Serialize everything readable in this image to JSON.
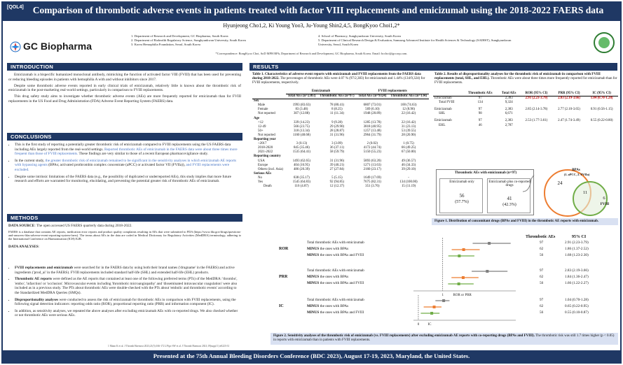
{
  "header": {
    "tag": "[QOL4]",
    "title": "Comparison of thrombotic adverse events in patients treated with factor VIII replacements and emicizumab using the 2018-2022 FAERS data",
    "authors": "Hyunjeong Cho1,2, Ki Young Yoo3, Ju-Young Shin2,4,5, BongKyoo Choi1,2*",
    "logo": "GC Biopharma",
    "affiliations_left": [
      "1. Department of Research and Development, GC Biopharma, South Korea",
      "2. Department of Biohealth Regulatory Science, Sungkyunkwan University, South Korea",
      "3. Korea Hemophilia Foundation, Seoul, South Korea"
    ],
    "affiliations_right": [
      "4. School of Pharmacy, Sungkyunkwan University, South Korea",
      "5. Department of Clinical Research Design & Evaluation, Samsung Advanced Institute for Health Sciences & Technology (SAIHST), Sungkyunkwan University, Seoul, South Korea"
    ],
    "correspondence": "*Correspondence: BongKyoo Choi, SoD MPH RPh, Department of Research and Development, GC Biopharma, South Korea. Email: bcchoi@gccorp.com."
  },
  "introduction": {
    "heading": "INTRODUCTION",
    "paragraphs": [
      "Emicizumab is a bispecific humanized monoclonal antibody, mimicking the function of activated factor VIII (FVIII) that has been used for preventing or reducing bleeding episodes in patients with hemophilia A with and without inhibitors since 2017.",
      "Despite some thrombotic adverse events reported in early clinical trials of emicizumab, relatively little is known about the thrombotic risk of emicizumab in the post-marketing real-world settings, particularly in comparison to FVIII replacements.",
      "This drug safety study aims to investigate whether thrombotic adverse events (AEs) are more frequently reported for emicizumab than for FVIII replacements in the US Food and Drug Administration (FDA) Adverse Event Reporting System (FAERS) data."
    ]
  },
  "conclusions": {
    "heading": "CONCLUSIONS",
    "b1_pre": "This is the first study of reporting a potentially greater thrombotic risk of emicizumab compared to FVIII replacements using the US FAERS data including AEs largely reported from the real-world settings. ",
    "b1_hl": "Reported thrombotic AEs of emicizumab in the FAERS data were about three times more frequent than those of FVIII replacements.",
    "b1_post": " These findings are very similar to those of a recent European pharmacovigilance study.",
    "b2_pre": "In the current study, ",
    "b2_hl": "the greater thrombotic risk of emicizumab remained to be significant in the sensitivity analyses in which emicizumab AE reports with bypassing agents",
    "b2_mid": " (BPAs; activated prothrombin complex concentrate (aPCC) or activated factor VII (FVIIa)), ",
    "b2_hl2": "and FVIII replacements were excluded.",
    "b3": "Despite some intrinsic limitations of the FAERS data (e.g., the possibility of duplicated or underreported AEs), this study implies that more future research and efforts are warranted for monitoring, elucidating, and preventing the potential greater risk of thrombotic AEs of emicizumab."
  },
  "methods": {
    "heading": "METHODS",
    "ds_label": "DATA SOURCE",
    "ds_text": ": The open accessed US FAERS quarterly data during 2018-2022.",
    "ds_detail": "FAERS is a database that contains AE reports, medication error reports and product quality complaints resulting in AEs that were submitted to FDA (https://www.fda.gov/drugs/questions-and-answers-fdas-adverse-event-reporting-system-faers). The terms about AEs in the data are coded in Medical Dictionary for Regulatory Activities (MedDRA) terminology, adhering to the International Conference on Harmonization (ICH) E2B.",
    "da_label": "DATA ANALYSES",
    "da_colon": ":",
    "m1_bold": "FVIII replacements and emicizumab",
    "m1": " were searched for in the FAERS data by using both their brand names ('drugname' in the FAERS) and active ingredients ('prod_ai' in the FAERS). FVIII replacements included standard half-life (SHL) and extended half-life (EHL) products.",
    "m2_bold": "Thrombotic AE reports",
    "m2": " were defined as the AE reports that contained at least one of the following preferred terms (PTs) of the MedDRA: 'thrombo', 'embo', 'infarction' or 'occlusion'. Microvascular events including 'thrombotic microangiopathy' and 'disseminated intravascular coagulation' were also included as in a previous study. The PTs about thrombotic AEs were double-checked with the PTs about 'embolic and thrombotic events' according to the Standardized MedDRA Queries (SMQs).",
    "m3_bold": "Disproportionality analyses",
    "m3": " were conducted to assess the risk of emicizumab for thrombotic AEs in comparison with FVIII replacements, using the following signal detection indicators: reporting odds ratio (ROR), proportional reporting ratio (PRR) and information component (IC).",
    "m4": "In addition, as sensitivity analyses, we repeated the above analyses after excluding emicizumab AEs with co-reported drugs. We also checked whether or not thrombotic AEs were serious AEs.",
    "refs": "1 Mann K et al. J Thromb Haemost 2023;21(5):166-172   2 Pipe SW et al. J Thromb Haemost 2021;19(suppl 1):e0223-31"
  },
  "results": {
    "heading": "RESULTS",
    "table1": {
      "caption_bold": "Table 1. Characteristics of adverse event reports with emicizumab and FVIII replacements from the FAERS data during 2018-2022.",
      "caption": " The percentages of thrombotic AEs were 4.07 % (97/2,383) for emicizumab and 1.44% (134/9,324) for FVIII replacements, respectively.",
      "group1": "Emicizumab",
      "group2": "FVIII replacements",
      "headers": [
        "",
        "Total AEs (n=2383)",
        "Thrombotic AEs (n=97)",
        "Total AEs (n=9324)",
        "Thrombotic AEs (n=134)"
      ],
      "rows": [
        {
          "label": "Sex",
          "kind": "grp",
          "cells": [
            "",
            "",
            "",
            ""
          ]
        },
        {
          "label": "Male",
          "kind": "sub",
          "cells": [
            "1993 (83.63)",
            "78 (80.41)",
            "6807 (73.01)",
            "100 (74.63)"
          ]
        },
        {
          "label": "Female",
          "kind": "sub",
          "cells": [
            "83 (3.48)",
            "8 (8.25)",
            "569 (6.10)",
            "12 (8.96)"
          ]
        },
        {
          "label": "Not reported",
          "kind": "sub",
          "cells": [
            "307 (12.88)",
            "11 (11.34)",
            "1948 (20.89)",
            "22 (16.42)"
          ]
        },
        {
          "label": "Age",
          "kind": "grp",
          "cells": [
            "",
            "",
            "",
            ""
          ]
        },
        {
          "label": "<12",
          "kind": "sub",
          "cells": [
            "339 (14.23)",
            "9 (9.28)",
            "1285 (13.78)",
            "22 (16.42)"
          ]
        },
        {
          "label": "12-49",
          "kind": "sub",
          "cells": [
            "566 (23.75)",
            "29 (29.90)",
            "3818 (40.95)",
            "31 (23.13)"
          ]
        },
        {
          "label": "50+",
          "kind": "sub",
          "cells": [
            "318 (13.34)",
            "28 (28.87)",
            "1257 (13.48)",
            "53 (39.55)"
          ]
        },
        {
          "label": "Not reported",
          "kind": "sub",
          "cells": [
            "1160 (48.68)",
            "31 (31.96)",
            "2964 (31.79)",
            "28 (20.90)"
          ]
        },
        {
          "label": "Reporting year",
          "kind": "grp",
          "cells": [
            "",
            "",
            "",
            ""
          ]
        },
        {
          "label": "~2017",
          "kind": "sub",
          "cells": [
            "3 (0.13)",
            "3 (3.09)",
            "2 (0.02)",
            "1 (0.75)"
          ]
        },
        {
          "label": "2018-2020",
          "kind": "sub",
          "cells": [
            "845 (35.46)",
            "36 (37.11)",
            "4172 (44.74)",
            "66 (49.25)"
          ]
        },
        {
          "label": "2021-2022",
          "kind": "sub",
          "cells": [
            "1535 (64.41)",
            "58 (59.79)",
            "5150 (55.23)",
            "67 (50.00)"
          ]
        },
        {
          "label": "Reporting country",
          "kind": "grp",
          "cells": [
            "",
            "",
            "",
            ""
          ]
        },
        {
          "label": "USA",
          "kind": "sub",
          "cells": [
            "1493 (62.65)",
            "31 (31.96)",
            "5893 (63.20)",
            "49 (36.57)"
          ]
        },
        {
          "label": "Europe",
          "kind": "sub",
          "cells": [
            "404 (16.95)",
            "39 (40.21)",
            "1271 (13.63)",
            "46 (34.33)"
          ]
        },
        {
          "label": "Others (incl. Asia)",
          "kind": "sub",
          "cells": [
            "486 (20.39)",
            "27 (27.84)",
            "2160 (23.17)",
            "39 (29.10)"
          ]
        },
        {
          "label": "Serious AEs",
          "kind": "grp",
          "cells": [
            "",
            "",
            "",
            ""
          ]
        },
        {
          "label": "No",
          "kind": "sub",
          "cells": [
            "838 (35.17)",
            "5 (5.15)",
            "1649 (17.69)",
            "-"
          ]
        },
        {
          "label": "Yes",
          "kind": "sub",
          "cells": [
            "1545 (64.83)",
            "92 (94.85)",
            "7675 (82.31)",
            "134 (100.00)"
          ]
        },
        {
          "label": "Death",
          "kind": "sub2",
          "cells": [
            "116 (4.87)",
            "12 (12.37)",
            "351 (3.76)",
            "15 (11.19)"
          ]
        }
      ]
    },
    "table2": {
      "caption_bold": "Table 2. Results of disproportionality analyses for the thrombotic risk of emicizumab in comparison with FVIII replacements (total, SHL, and EHL).",
      "caption": " Thrombotic AEs were about three times more frequently reported for emicizumab than for FVIII replacements.",
      "headers": [
        "",
        "Thrombotic AEs",
        "Total AEs",
        "ROR (95% CI)",
        "PRR (95% CI)",
        "IC (95% CI)"
      ],
      "rows": [
        [
          "Emicizumab",
          "97",
          "2,383",
          "2.91 (2.23-3.79)",
          "2.83 (2.19-3.66)",
          "1.04 (0.70-1.28)"
        ],
        [
          "Total FVIII",
          "134",
          "9,324",
          "",
          "",
          ""
        ],
        [
          "Emicizumab",
          "97",
          "2,383",
          "2.85 (2.14-3.78)",
          "2.77 (2.10-3.65)",
          "0.91 (0.56-1.15)"
        ],
        [
          "SHL",
          "98",
          "6,671",
          "",
          "",
          ""
        ],
        [
          "Emicizumab",
          "97",
          "2,383",
          "2.53 (1.77-3.61)",
          "2.47 (1.74-3.49)",
          "0.55 (0.22-0.80)"
        ],
        [
          "EHL",
          "46",
          "2,787",
          "",
          "",
          ""
        ]
      ]
    },
    "venn": {
      "box_title": "Thrombotic AEs with emicizumab (n=97)",
      "left_box_label": "Emicizumab only",
      "left_box_value": "56",
      "left_box_pct": "(57.7%)",
      "right_box_label": "Emicizumab plus co-reported drugs",
      "right_box_value": "41",
      "right_box_pct": "(42.3%)",
      "bpa_label": "BPAs",
      "bpa_sub": "(1. aPCC, 2. FVIIa)",
      "bpa_only": "24",
      "overlap": "11",
      "fviii_only": "6",
      "fviii_label": "FVIII"
    },
    "figure1_caption_bold": "Figure 1. Distribution of concomitant drugs (BPAs and FVIII) in the thrombotic AE reports with emicizumab.",
    "forest": {
      "col_events": "Thrombotic AEs",
      "col_ci": "95% CI",
      "x_label_ror": "ROR or PRR",
      "x_label_ic": "IC",
      "tick_1": "1",
      "tick_0": "0",
      "groups": [
        {
          "name": "ROR",
          "rows": [
            {
              "label": "Total thrombotic AEs with emicizumab",
              "bold": "",
              "tail": "",
              "n": "97",
              "ci": "2.91 (2.23-3.79)",
              "est": 2.91,
              "lo": 2.23,
              "hi": 3.79,
              "color": "#7f7f7f"
            },
            {
              "label": "",
              "bold": "MINUS",
              "tail": " the ones with BPAs",
              "n": "62",
              "ci": "1.86 (1.37-2.52)",
              "est": 1.86,
              "lo": 1.37,
              "hi": 2.52,
              "color": "#ed7d31"
            },
            {
              "label": "",
              "bold": "MINUS",
              "tail": " the ones with BPAs and FVIII",
              "n": "56",
              "ci": "1.68 (1.23-2.30)",
              "est": 1.68,
              "lo": 1.23,
              "hi": 2.3,
              "color": "#70ad47"
            }
          ]
        },
        {
          "name": "PRR",
          "rows": [
            {
              "label": "Total thrombotic AEs with emicizumab",
              "bold": "",
              "tail": "",
              "n": "97",
              "ci": "2.83 (2.19-3.66)",
              "est": 2.83,
              "lo": 2.19,
              "hi": 3.66,
              "color": "#7f7f7f"
            },
            {
              "label": "",
              "bold": "MINUS",
              "tail": " the ones with BPAs",
              "n": "62",
              "ci": "1.84 (1.36-2.47)",
              "est": 1.84,
              "lo": 1.36,
              "hi": 2.47,
              "color": "#ed7d31"
            },
            {
              "label": "",
              "bold": "MINUS",
              "tail": " the ones with BPAs and FVIII",
              "n": "56",
              "ci": "1.66 (1.22-2.27)",
              "est": 1.66,
              "lo": 1.22,
              "hi": 2.27,
              "color": "#70ad47"
            }
          ]
        },
        {
          "name": "IC",
          "rows": [
            {
              "label": "Total thrombotic AEs with emicizumab",
              "bold": "",
              "tail": "",
              "n": "97",
              "ci": "1.04 (0.70-1.28)",
              "est": 1.04,
              "lo": 0.7,
              "hi": 1.28,
              "color": "#7f7f7f"
            },
            {
              "label": "",
              "bold": "MINUS",
              "tail": " the ones with BPAs",
              "n": "62",
              "ci": "0.65 (0.22-0.95)",
              "est": 0.65,
              "lo": 0.22,
              "hi": 0.95,
              "color": "#ed7d31"
            },
            {
              "label": "",
              "bold": "MINUS",
              "tail": " the ones with BPAs and FVIII",
              "n": "56",
              "ci": "0.55 (0.10-0.87)",
              "est": 0.55,
              "lo": 0.1,
              "hi": 0.87,
              "color": "#70ad47"
            }
          ]
        }
      ]
    },
    "figure2_caption_bold": "Figure 2. Sensitivity analyses of the thrombotic risk of emicizumab (vs. FVIII replacements) after excluding emicizumab AE reports with co-reporting drugs (BPAs and FVIII).",
    "figure2_caption": " The thrombotic risk was still 1.7 times higher (p < 0.05) in reports with emicizumab than in patients with FVIII replacements."
  },
  "footer": "Presented at the 75th Annual Bleeding Disorders Conference (BDC 2023), August 17-19, 2023, Maryland, the United States.",
  "colors": {
    "navy": "#1f3864",
    "accent_blue": "#4472c4",
    "grey_series": "#7f7f7f",
    "orange_series": "#ed7d31",
    "green_series": "#70ad47"
  }
}
